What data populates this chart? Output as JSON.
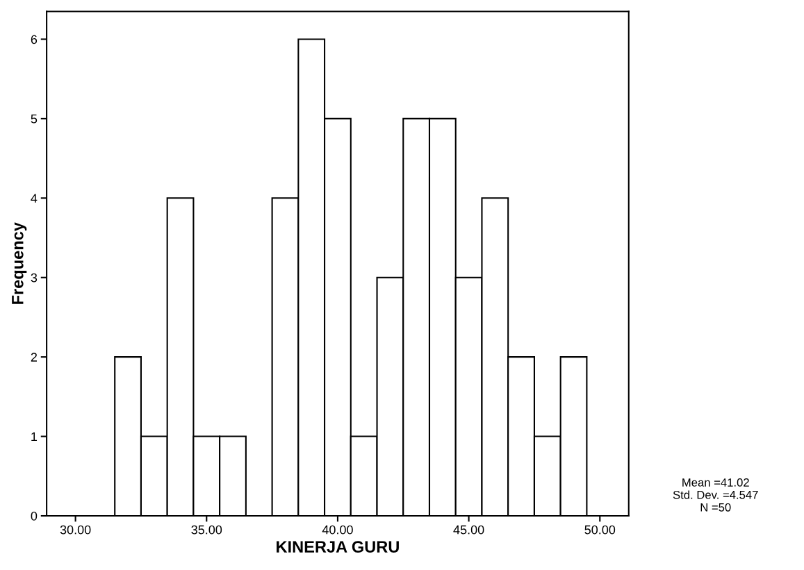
{
  "chart_data": {
    "type": "histogram",
    "xlabel": "KINERJA GURU",
    "ylabel": "Frequency",
    "bins": [
      31.5,
      32.5,
      33.5,
      34.5,
      35.5,
      36.5,
      37.5,
      38.5,
      39.5,
      40.5,
      41.5,
      42.5,
      43.5,
      44.5,
      45.5,
      46.5,
      47.5,
      48.5,
      49.5
    ],
    "values": [
      2,
      1,
      4,
      1,
      1,
      0,
      4,
      6,
      5,
      1,
      3,
      5,
      5,
      3,
      4,
      2,
      1,
      2
    ],
    "color": "#ffffff",
    "xlim": [
      28.9,
      51.1
    ],
    "xticks": [
      {
        "value": 30,
        "label": "30.00"
      },
      {
        "value": 35,
        "label": "35.00"
      },
      {
        "value": 40,
        "label": "40.00"
      },
      {
        "value": 45,
        "label": "45.00"
      },
      {
        "value": 50,
        "label": "50.00"
      }
    ],
    "ylim": [
      0,
      6.35
    ],
    "yticks": [
      0,
      1,
      2,
      3,
      4,
      5,
      6
    ],
    "grid": false,
    "annotations": [
      "Mean =41.02\nStd. Dev. =4.547\nN =50"
    ]
  }
}
